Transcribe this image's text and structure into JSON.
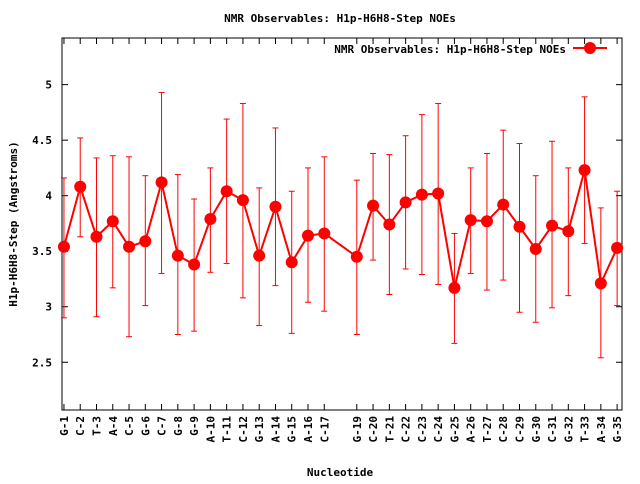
{
  "chart_data": {
    "type": "line",
    "title": "NMR Observables: H1p-H6H8-Step NOEs",
    "xlabel": "Nucleotide",
    "ylabel": "H1p-H6H8-Step (Angstroms)",
    "ylim": [
      2.07,
      5.42
    ],
    "yticks": [
      2.5,
      3,
      3.5,
      4,
      4.5,
      5
    ],
    "ytick_labels": [
      "2.5",
      "3",
      "3.5",
      "4",
      "4.5",
      "5"
    ],
    "xlim": [
      0.88,
      35.3
    ],
    "grid": false,
    "legend": {
      "position": "top-right",
      "label": "NMR Observables: H1p-H6H8-Step NOEs"
    },
    "color": "#ff0000",
    "series": [
      {
        "name": "NMR Observables: H1p-H6H8-Step NOEs",
        "points": [
          {
            "x": 1,
            "label": "G-1",
            "y": 3.54,
            "low": 2.9,
            "high": 4.16
          },
          {
            "x": 2,
            "label": "C-2",
            "y": 4.08,
            "low": 3.63,
            "high": 4.52
          },
          {
            "x": 3,
            "label": "T-3",
            "y": 3.63,
            "low": 2.91,
            "high": 4.34
          },
          {
            "x": 4,
            "label": "A-4",
            "y": 3.77,
            "low": 3.17,
            "high": 4.36
          },
          {
            "x": 5,
            "label": "C-5",
            "y": 3.54,
            "low": 2.73,
            "high": 4.35
          },
          {
            "x": 6,
            "label": "G-6",
            "y": 3.59,
            "low": 3.01,
            "high": 4.18
          },
          {
            "x": 7,
            "label": "C-7",
            "y": 4.12,
            "low": 3.3,
            "high": 4.93
          },
          {
            "x": 8,
            "label": "G-8",
            "y": 3.46,
            "low": 2.75,
            "high": 4.19
          },
          {
            "x": 9,
            "label": "G-9",
            "y": 3.38,
            "low": 2.78,
            "high": 3.97
          },
          {
            "x": 10,
            "label": "A-10",
            "y": 3.79,
            "low": 3.31,
            "high": 4.25
          },
          {
            "x": 11,
            "label": "T-11",
            "y": 4.04,
            "low": 3.39,
            "high": 4.69
          },
          {
            "x": 12,
            "label": "C-12",
            "y": 3.96,
            "low": 3.08,
            "high": 4.83
          },
          {
            "x": 13,
            "label": "G-13",
            "y": 3.46,
            "low": 2.83,
            "high": 4.07
          },
          {
            "x": 14,
            "label": "A-14",
            "y": 3.9,
            "low": 3.19,
            "high": 4.61
          },
          {
            "x": 15,
            "label": "G-15",
            "y": 3.4,
            "low": 2.76,
            "high": 4.04
          },
          {
            "x": 16,
            "label": "A-16",
            "y": 3.64,
            "low": 3.04,
            "high": 4.25
          },
          {
            "x": 17,
            "label": "C-17",
            "y": 3.66,
            "low": 2.96,
            "high": 4.35
          },
          {
            "x": 19,
            "label": "G-19",
            "y": 3.45,
            "low": 2.75,
            "high": 4.14
          },
          {
            "x": 20,
            "label": "C-20",
            "y": 3.91,
            "low": 3.42,
            "high": 4.38
          },
          {
            "x": 21,
            "label": "T-21",
            "y": 3.74,
            "low": 3.11,
            "high": 4.37
          },
          {
            "x": 22,
            "label": "C-22",
            "y": 3.94,
            "low": 3.34,
            "high": 4.54
          },
          {
            "x": 23,
            "label": "C-23",
            "y": 4.01,
            "low": 3.29,
            "high": 4.73
          },
          {
            "x": 24,
            "label": "C-24",
            "y": 4.02,
            "low": 3.2,
            "high": 4.83
          },
          {
            "x": 25,
            "label": "G-25",
            "y": 3.17,
            "low": 2.67,
            "high": 3.66
          },
          {
            "x": 26,
            "label": "A-26",
            "y": 3.78,
            "low": 3.3,
            "high": 4.25
          },
          {
            "x": 27,
            "label": "T-27",
            "y": 3.77,
            "low": 3.15,
            "high": 4.38
          },
          {
            "x": 28,
            "label": "C-28",
            "y": 3.92,
            "low": 3.24,
            "high": 4.59
          },
          {
            "x": 29,
            "label": "C-29",
            "y": 3.72,
            "low": 2.95,
            "high": 4.47
          },
          {
            "x": 30,
            "label": "G-30",
            "y": 3.52,
            "low": 2.86,
            "high": 4.18
          },
          {
            "x": 31,
            "label": "C-31",
            "y": 3.73,
            "low": 2.99,
            "high": 4.49
          },
          {
            "x": 32,
            "label": "G-32",
            "y": 3.68,
            "low": 3.1,
            "high": 4.25
          },
          {
            "x": 33,
            "label": "T-33",
            "y": 4.23,
            "low": 3.57,
            "high": 4.89
          },
          {
            "x": 34,
            "label": "A-34",
            "y": 3.21,
            "low": 2.54,
            "high": 3.89
          },
          {
            "x": 35,
            "label": "G-35",
            "y": 3.53,
            "low": 3.01,
            "high": 4.04
          }
        ]
      }
    ]
  }
}
